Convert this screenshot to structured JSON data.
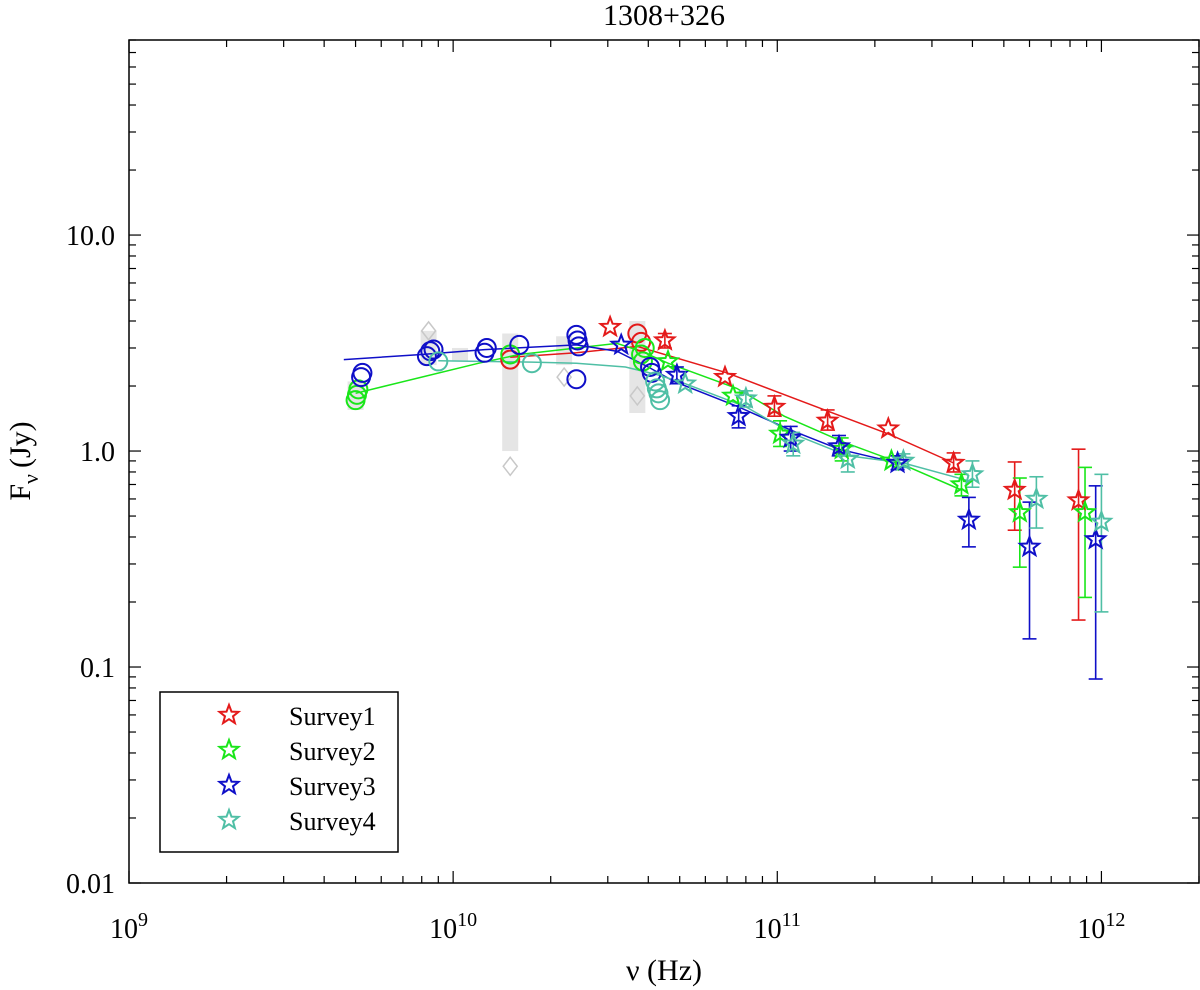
{
  "chart_data": {
    "type": "scatter",
    "title": "1308+326",
    "xlabel": "ν (Hz)",
    "ylabel": "F_ν (Jy)",
    "ylabel_main": "F",
    "ylabel_sub": "ν",
    "ylabel_unit": "(Jy)",
    "xscale": "log",
    "yscale": "log",
    "xlim": [
      1000000000.0,
      2000000000000.0
    ],
    "ylim": [
      0.01,
      80
    ],
    "x_ticks": [
      {
        "value": 1000000000.0,
        "mantissa": "10",
        "exp": "9"
      },
      {
        "value": 10000000000.0,
        "mantissa": "10",
        "exp": "10"
      },
      {
        "value": 100000000000.0,
        "mantissa": "10",
        "exp": "11"
      },
      {
        "value": 1000000000000.0,
        "mantissa": "10",
        "exp": "12"
      }
    ],
    "y_ticks": [
      {
        "value": 0.01,
        "label": "0.01"
      },
      {
        "value": 0.1,
        "label": "0.1"
      },
      {
        "value": 1,
        "label": "1.0"
      },
      {
        "value": 10,
        "label": "10.0"
      }
    ],
    "legend": {
      "location": "bottom-left",
      "entries": [
        "Survey1",
        "Survey2",
        "Survey3",
        "Survey4"
      ]
    },
    "archival_gray_ranges": [
      {
        "x": 5000000000.0,
        "low": 1.55,
        "high": 2.1
      },
      {
        "x": 8400000000.0,
        "low": 2.5,
        "high": 3.6
      },
      {
        "x": 10500000000.0,
        "low": 2.6,
        "high": 3.0
      },
      {
        "x": 15000000000.0,
        "low": 1.0,
        "high": 3.5
      },
      {
        "x": 22000000000.0,
        "low": 2.5,
        "high": 3.4
      },
      {
        "x": 37000000000.0,
        "low": 1.5,
        "high": 4.0
      }
    ],
    "archival_gray_markers": [
      {
        "x": 8400000000.0,
        "y": 3.6
      },
      {
        "x": 15000000000.0,
        "y": 0.85
      },
      {
        "x": 22000000000.0,
        "y": 2.2
      },
      {
        "x": 37000000000.0,
        "y": 1.8
      }
    ],
    "series": [
      {
        "name": "Survey1",
        "color": "#e41a1a",
        "fit": {
          "x": [
            15000000000.0,
            24000000000.0,
            37000000000.0,
            70000000000.0,
            145000000000.0,
            220000000000.0,
            350000000000.0
          ],
          "y": [
            2.72,
            2.85,
            3.05,
            2.3,
            1.52,
            1.2,
            0.88
          ]
        },
        "circles": [
          {
            "x": 15000000000.0,
            "y": 2.65
          },
          {
            "x": 37000000000.0,
            "y": 3.5
          },
          {
            "x": 38000000000.0,
            "y": 3.2
          }
        ],
        "stars": [
          {
            "x": 30500000000.0,
            "y": 3.75
          },
          {
            "x": 45000000000.0,
            "y": 3.25,
            "lo": 3.0,
            "hi": 3.5
          },
          {
            "x": 69000000000.0,
            "y": 2.2
          },
          {
            "x": 98000000000.0,
            "y": 1.6,
            "lo": 1.45,
            "hi": 1.8
          },
          {
            "x": 143000000000.0,
            "y": 1.38,
            "lo": 1.25,
            "hi": 1.55
          },
          {
            "x": 220000000000.0,
            "y": 1.27
          },
          {
            "x": 350000000000.0,
            "y": 0.88,
            "lo": 0.8,
            "hi": 0.98
          },
          {
            "x": 540000000000.0,
            "y": 0.66,
            "lo": 0.43,
            "hi": 0.89
          },
          {
            "x": 850000000000.0,
            "y": 0.59,
            "lo": 0.165,
            "hi": 1.02
          }
        ]
      },
      {
        "name": "Survey2",
        "color": "#19e619",
        "fit": {
          "x": [
            5000000000.0,
            8000000000.0,
            12000000000.0,
            16000000000.0,
            24000000000.0,
            32000000000.0,
            38000000000.0,
            46000000000.0,
            75000000000.0,
            105000000000.0,
            160000000000.0,
            230000000000.0,
            370000000000.0
          ],
          "y": [
            1.85,
            2.2,
            2.55,
            2.8,
            3.0,
            3.15,
            2.9,
            2.55,
            1.95,
            1.45,
            1.1,
            0.9,
            0.66
          ]
        },
        "circles": [
          {
            "x": 5000000000.0,
            "y": 1.72
          },
          {
            "x": 5050000000.0,
            "y": 1.82
          },
          {
            "x": 5100000000.0,
            "y": 1.93
          },
          {
            "x": 15000000000.0,
            "y": 2.8
          },
          {
            "x": 38000000000.0,
            "y": 2.8
          },
          {
            "x": 38500000000.0,
            "y": 2.6
          },
          {
            "x": 39000000000.0,
            "y": 3.0
          }
        ],
        "stars": [
          {
            "x": 46000000000.0,
            "y": 2.6
          },
          {
            "x": 73000000000.0,
            "y": 1.8
          },
          {
            "x": 102000000000.0,
            "y": 1.2,
            "lo": 1.05,
            "hi": 1.38
          },
          {
            "x": 158000000000.0,
            "y": 1.02,
            "lo": 0.9,
            "hi": 1.15
          },
          {
            "x": 225000000000.0,
            "y": 0.9
          },
          {
            "x": 370000000000.0,
            "y": 0.7,
            "lo": 0.62,
            "hi": 0.78
          },
          {
            "x": 560000000000.0,
            "y": 0.52,
            "lo": 0.29,
            "hi": 0.75
          },
          {
            "x": 890000000000.0,
            "y": 0.52,
            "lo": 0.21,
            "hi": 0.84
          }
        ]
      },
      {
        "name": "Survey3",
        "color": "#0f0fc8",
        "fit": {
          "x": [
            4600000000.0,
            8000000000.0,
            12500000000.0,
            24000000000.0,
            32000000000.0,
            40000000000.0,
            48000000000.0,
            76000000000.0,
            110000000000.0,
            155000000000.0,
            235000000000.0
          ],
          "y": [
            2.65,
            2.8,
            2.95,
            3.1,
            2.9,
            2.45,
            2.1,
            1.6,
            1.25,
            1.02,
            0.88
          ]
        },
        "circles": [
          {
            "x": 5200000000.0,
            "y": 2.2
          },
          {
            "x": 5250000000.0,
            "y": 2.3
          },
          {
            "x": 8300000000.0,
            "y": 2.75
          },
          {
            "x": 8500000000.0,
            "y": 2.9
          },
          {
            "x": 8700000000.0,
            "y": 2.95
          },
          {
            "x": 12500000000.0,
            "y": 2.85
          },
          {
            "x": 12700000000.0,
            "y": 3.0
          },
          {
            "x": 16000000000.0,
            "y": 3.1
          },
          {
            "x": 24000000000.0,
            "y": 3.45
          },
          {
            "x": 24200000000.0,
            "y": 3.25
          },
          {
            "x": 24400000000.0,
            "y": 3.05
          },
          {
            "x": 24000000000.0,
            "y": 2.15
          },
          {
            "x": 40500000000.0,
            "y": 2.45
          },
          {
            "x": 41000000000.0,
            "y": 2.3
          }
        ],
        "stars": [
          {
            "x": 33000000000.0,
            "y": 3.1
          },
          {
            "x": 49000000000.0,
            "y": 2.25,
            "lo": 2.05,
            "hi": 2.45
          },
          {
            "x": 76000000000.0,
            "y": 1.45,
            "lo": 1.28,
            "hi": 1.62
          },
          {
            "x": 110000000000.0,
            "y": 1.15,
            "lo": 1.0,
            "hi": 1.3
          },
          {
            "x": 155000000000.0,
            "y": 1.05,
            "lo": 0.95,
            "hi": 1.18
          },
          {
            "x": 235000000000.0,
            "y": 0.88,
            "lo": 0.82,
            "hi": 0.95
          },
          {
            "x": 390000000000.0,
            "y": 0.48,
            "lo": 0.36,
            "hi": 0.61
          },
          {
            "x": 600000000000.0,
            "y": 0.36,
            "lo": 0.135,
            "hi": 0.58
          },
          {
            "x": 960000000000.0,
            "y": 0.39,
            "lo": 0.088,
            "hi": 0.69
          }
        ]
      },
      {
        "name": "Survey4",
        "color": "#4fbfa5",
        "fit": {
          "x": [
            9000000000.0,
            12000000000.0,
            17500000000.0,
            24000000000.0,
            34000000000.0,
            43000000000.0,
            52000000000.0,
            80000000000.0,
            112000000000.0,
            165000000000.0,
            245000000000.0,
            400000000000.0
          ],
          "y": [
            2.62,
            2.6,
            2.58,
            2.55,
            2.45,
            2.25,
            2.05,
            1.6,
            1.2,
            0.95,
            0.88,
            0.72
          ]
        },
        "circles": [
          {
            "x": 9000000000.0,
            "y": 2.6
          },
          {
            "x": 17500000000.0,
            "y": 2.55
          },
          {
            "x": 42000000000.0,
            "y": 2.1
          },
          {
            "x": 42500000000.0,
            "y": 1.95
          },
          {
            "x": 43000000000.0,
            "y": 1.85
          },
          {
            "x": 43500000000.0,
            "y": 1.72
          }
        ],
        "stars": [
          {
            "x": 52000000000.0,
            "y": 2.05
          },
          {
            "x": 80000000000.0,
            "y": 1.75,
            "lo": 1.6,
            "hi": 1.9
          },
          {
            "x": 112000000000.0,
            "y": 1.08,
            "lo": 0.95,
            "hi": 1.22
          },
          {
            "x": 165000000000.0,
            "y": 0.92,
            "lo": 0.8,
            "hi": 1.05
          },
          {
            "x": 245000000000.0,
            "y": 0.9,
            "lo": 0.84,
            "hi": 0.97
          },
          {
            "x": 400000000000.0,
            "y": 0.78,
            "lo": 0.68,
            "hi": 0.9
          },
          {
            "x": 630000000000.0,
            "y": 0.6,
            "lo": 0.44,
            "hi": 0.76
          },
          {
            "x": 1000000000000.0,
            "y": 0.47,
            "lo": 0.18,
            "hi": 0.78
          }
        ]
      }
    ]
  }
}
